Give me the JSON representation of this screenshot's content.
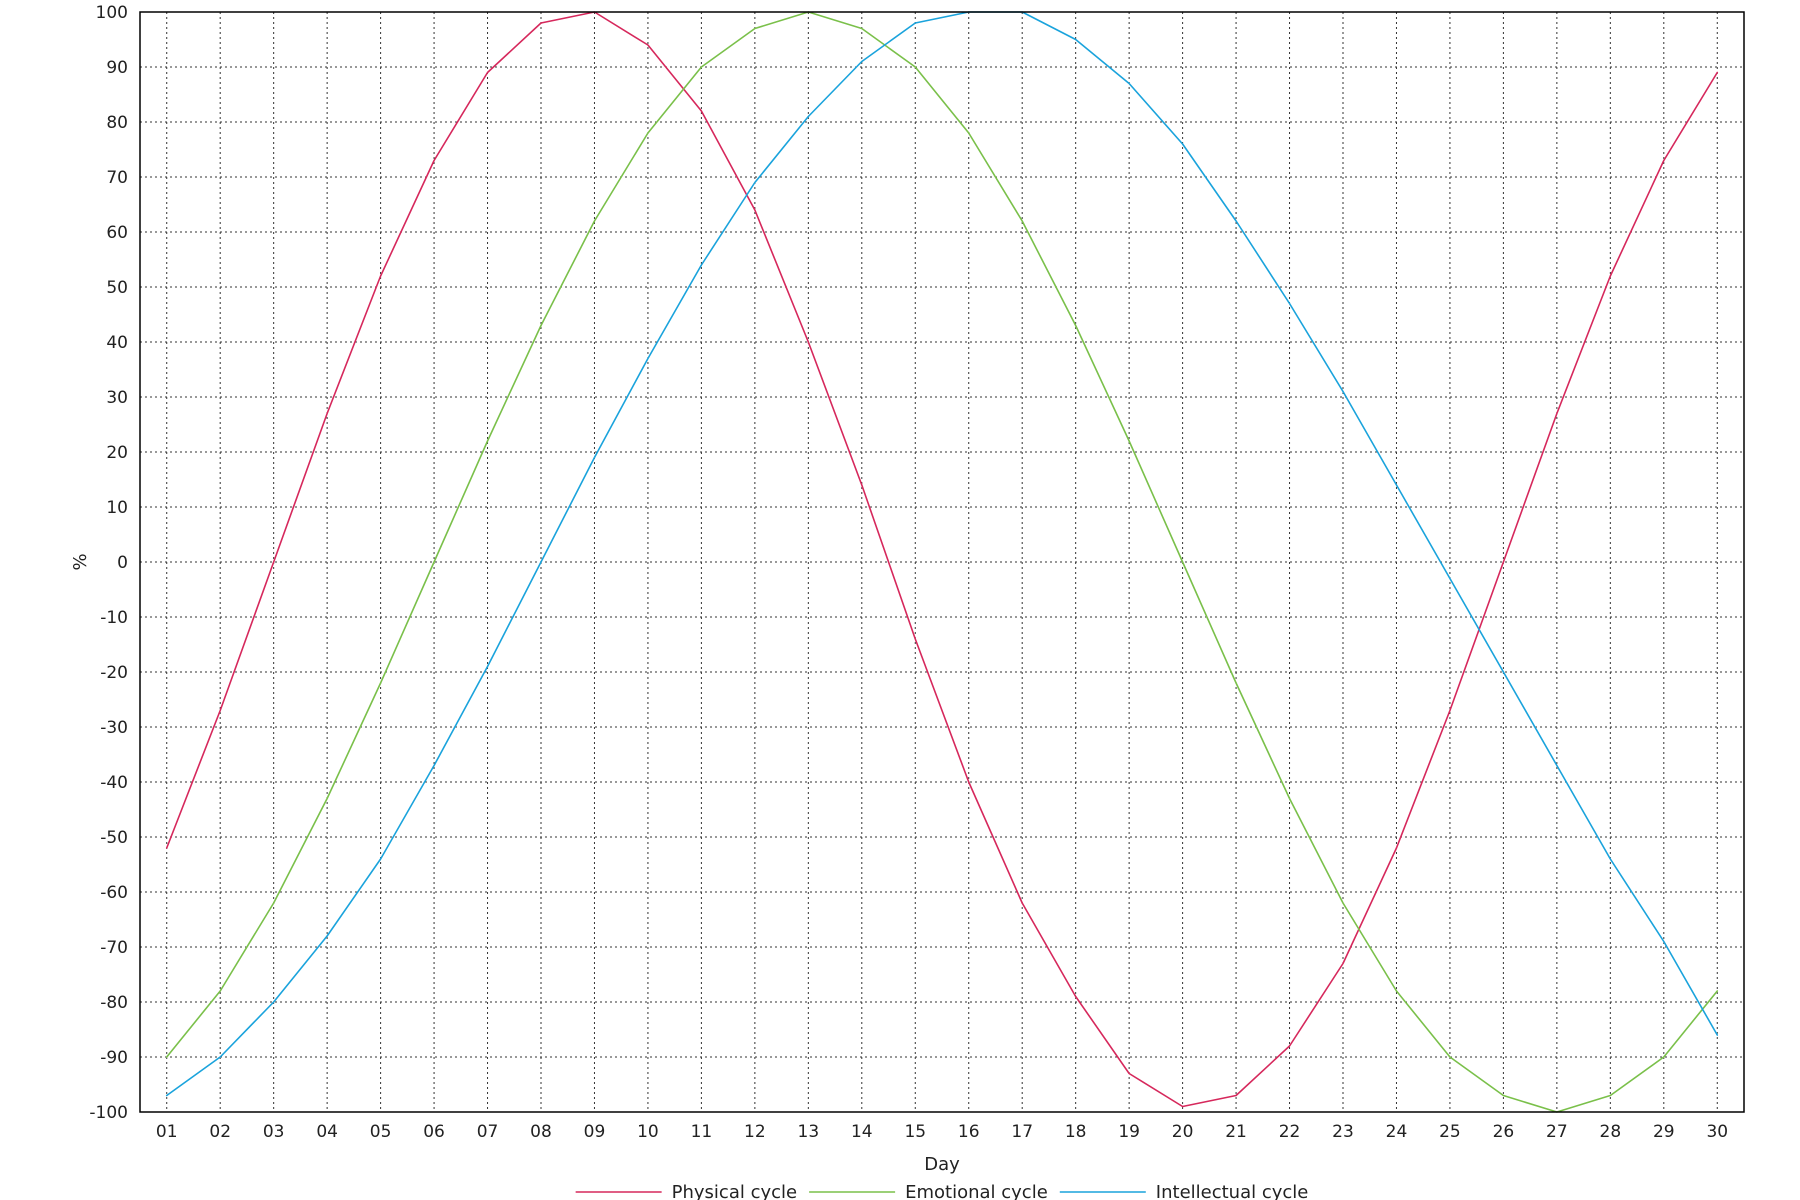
{
  "chart_data": {
    "type": "line",
    "title": "",
    "xlabel": "Day",
    "ylabel": "%",
    "ylim": [
      -100,
      100
    ],
    "yticks": [
      100,
      90,
      80,
      70,
      60,
      50,
      40,
      30,
      20,
      10,
      0,
      -10,
      -20,
      -30,
      -40,
      -50,
      -60,
      -70,
      -80,
      -90,
      -100
    ],
    "categories": [
      "01",
      "02",
      "03",
      "04",
      "05",
      "06",
      "07",
      "08",
      "09",
      "10",
      "11",
      "12",
      "13",
      "14",
      "15",
      "16",
      "17",
      "18",
      "19",
      "20",
      "21",
      "22",
      "23",
      "24",
      "25",
      "26",
      "27",
      "28",
      "29",
      "30"
    ],
    "grid": true,
    "legend_position": "bottom",
    "series": [
      {
        "name": "Physical cycle",
        "color": "#d6285c",
        "values": [
          -52,
          -27,
          0,
          27,
          52,
          73,
          89,
          98,
          100,
          94,
          82,
          64,
          40,
          14,
          -14,
          -40,
          -62,
          -79,
          -93,
          -99,
          -97,
          -88,
          -73,
          -52,
          -27,
          0,
          27,
          52,
          73,
          89
        ]
      },
      {
        "name": "Emotional cycle",
        "color": "#7ac04a",
        "values": [
          -90,
          -78,
          -62,
          -43,
          -22,
          0,
          22,
          43,
          62,
          78,
          90,
          97,
          100,
          97,
          90,
          78,
          62,
          43,
          22,
          0,
          -22,
          -43,
          -62,
          -78,
          -90,
          -97,
          -100,
          -97,
          -90,
          -78
        ]
      },
      {
        "name": "Intellectual cycle",
        "color": "#1aa3dc",
        "values": [
          -97,
          -90,
          -80,
          -68,
          -54,
          -37,
          -19,
          0,
          19,
          37,
          54,
          69,
          81,
          91,
          98,
          100,
          100,
          95,
          87,
          76,
          62,
          47,
          31,
          14,
          -3,
          -20,
          -37,
          -54,
          -69,
          -86
        ]
      }
    ]
  }
}
